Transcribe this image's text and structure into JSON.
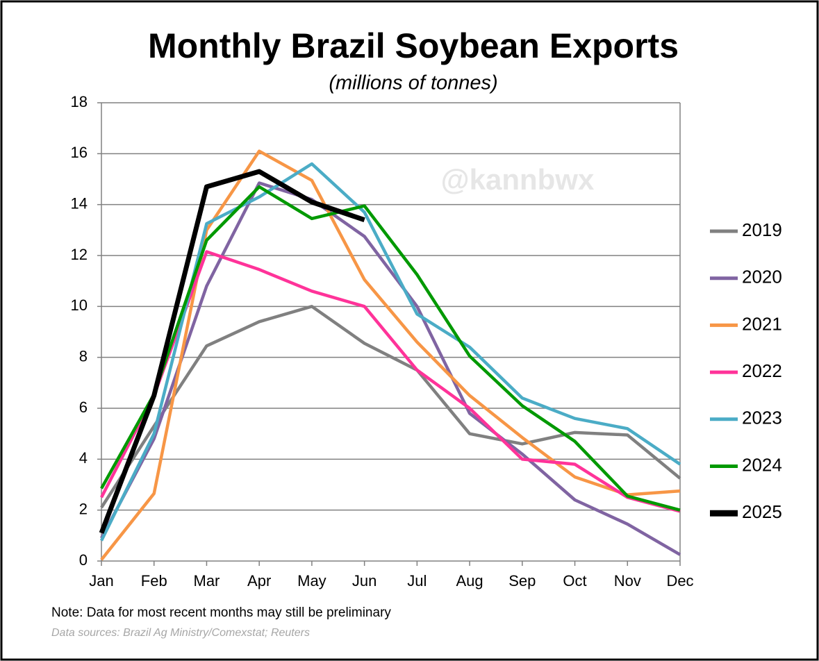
{
  "chart_data": {
    "type": "line",
    "title": "Monthly Brazil Soybean Exports",
    "subtitle": "(millions of tonnes)",
    "watermark": "@kannbwx",
    "note": "Note: Data for most recent months may still be preliminary",
    "source": "Data sources: Brazil Ag Ministry/Comexstat; Reuters",
    "categories": [
      "Jan",
      "Feb",
      "Mar",
      "Apr",
      "May",
      "Jun",
      "Jul",
      "Aug",
      "Sep",
      "Oct",
      "Nov",
      "Dec"
    ],
    "ylim": [
      0,
      18
    ],
    "yticks": [
      0,
      2,
      4,
      6,
      8,
      10,
      12,
      14,
      16,
      18
    ],
    "grid": true,
    "legend": "right",
    "series": [
      {
        "name": "2019",
        "color": "#808080",
        "values": [
          2.1,
          5.3,
          8.45,
          9.4,
          10.0,
          8.55,
          7.5,
          5.0,
          4.6,
          5.05,
          4.95,
          3.25
        ]
      },
      {
        "name": "2020",
        "color": "#8064a2",
        "values": [
          0.9,
          4.8,
          10.8,
          14.85,
          14.2,
          12.75,
          10.0,
          5.8,
          4.2,
          2.4,
          1.45,
          0.25
        ]
      },
      {
        "name": "2021",
        "color": "#f79646",
        "values": [
          0.05,
          2.65,
          13.0,
          16.1,
          14.95,
          11.05,
          8.6,
          6.5,
          4.85,
          3.3,
          2.6,
          2.75
        ]
      },
      {
        "name": "2022",
        "color": "#ff3399",
        "values": [
          2.5,
          6.5,
          12.15,
          11.45,
          10.6,
          10.0,
          7.5,
          6.0,
          4.0,
          3.8,
          2.5,
          1.95
        ]
      },
      {
        "name": "2023",
        "color": "#4bacc6",
        "values": [
          0.8,
          5.0,
          13.25,
          14.3,
          15.6,
          13.7,
          9.7,
          8.4,
          6.4,
          5.6,
          5.2,
          3.8
        ]
      },
      {
        "name": "2024",
        "color": "#009900",
        "values": [
          2.85,
          6.55,
          12.6,
          14.7,
          13.45,
          13.95,
          11.25,
          8.05,
          6.1,
          4.7,
          2.55,
          2.0
        ]
      },
      {
        "name": "2025",
        "color": "#000000",
        "values": [
          1.1,
          6.5,
          14.7,
          15.3,
          14.1,
          13.4,
          null,
          null,
          null,
          null,
          null,
          null
        ]
      }
    ]
  }
}
